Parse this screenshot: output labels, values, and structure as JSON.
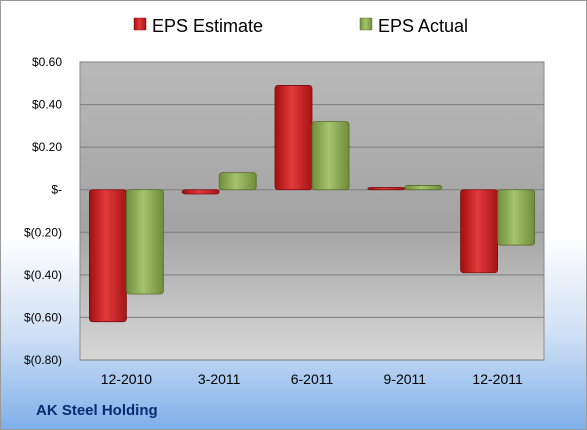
{
  "chart_data": {
    "type": "bar",
    "categories": [
      "12-2010",
      "3-2011",
      "6-2011",
      "9-2011",
      "12-2011"
    ],
    "series": [
      {
        "name": "EPS Estimate",
        "color": "#cc1e1e",
        "values": [
          -0.62,
          -0.02,
          0.49,
          0.01,
          -0.39
        ]
      },
      {
        "name": "EPS Actual",
        "color": "#8cae55",
        "values": [
          -0.49,
          0.08,
          0.32,
          0.02,
          -0.26
        ]
      }
    ],
    "ylim": [
      -0.8,
      0.6
    ],
    "yticks": [
      0.6,
      0.4,
      0.2,
      0.0,
      -0.2,
      -0.4,
      -0.6,
      -0.8
    ],
    "ytick_labels": [
      "$0.60",
      "$0.40",
      "$0.20",
      "$-",
      "$(0.20)",
      "$(0.40)",
      "$(0.60)",
      "$(0.80)"
    ],
    "grid": true,
    "legend_position": "top"
  },
  "caption": "AK Steel Holding"
}
